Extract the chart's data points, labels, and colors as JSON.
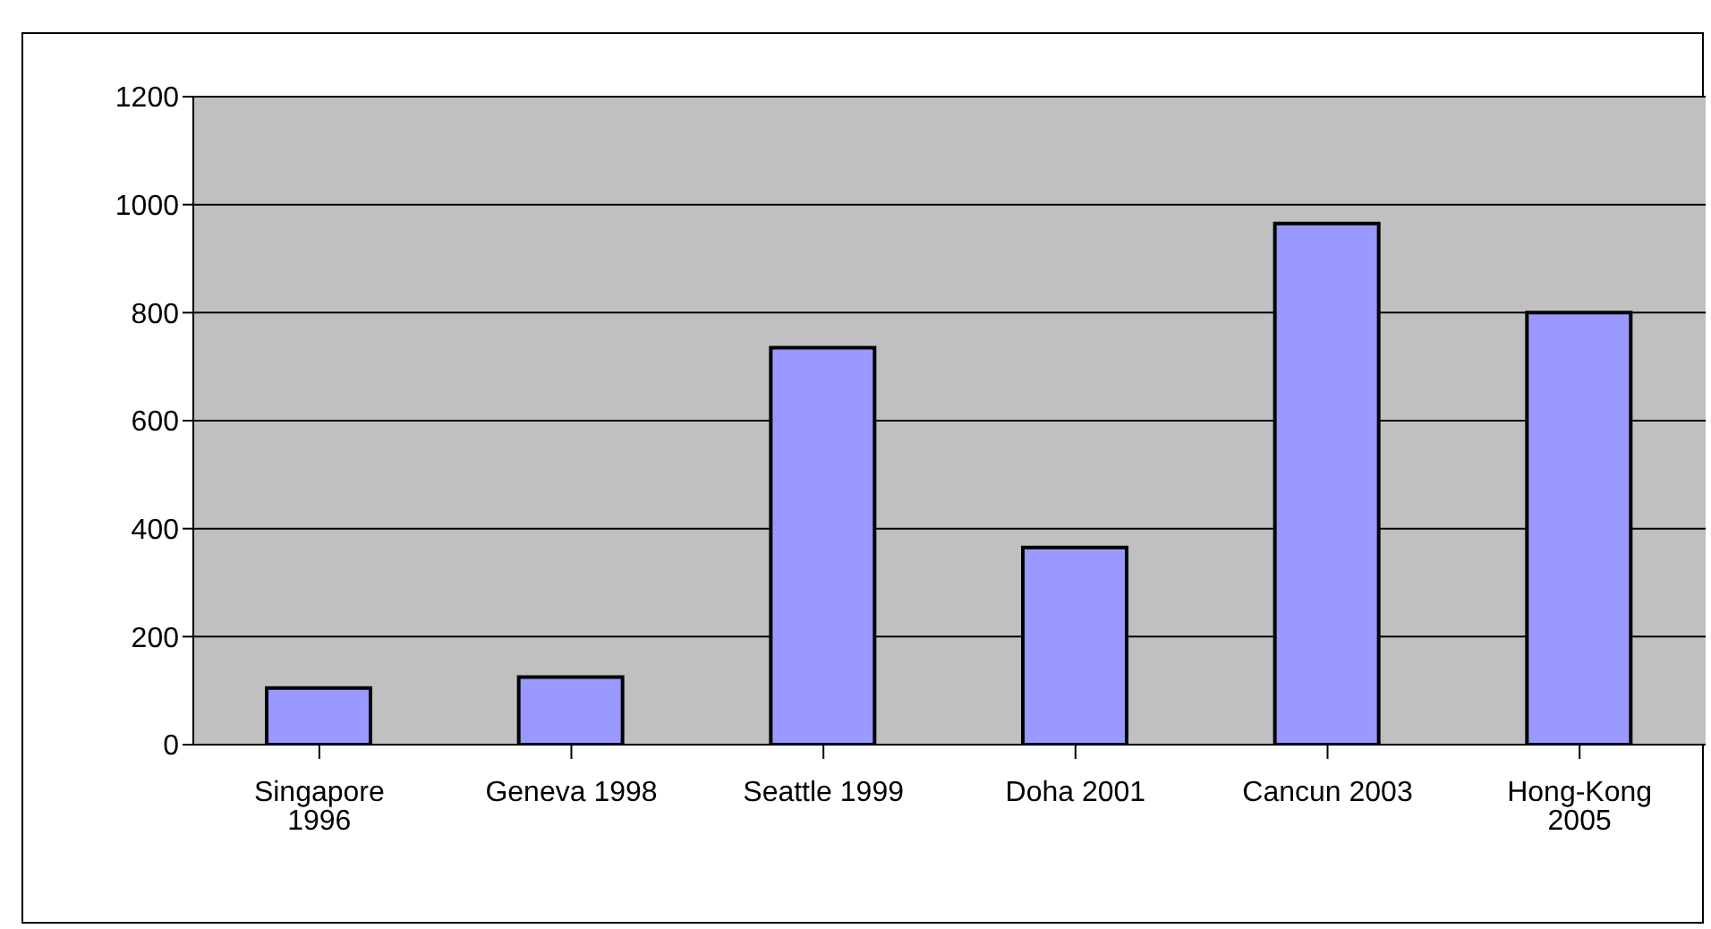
{
  "chart_data": {
    "type": "bar",
    "categories": [
      "Singapore 1996",
      "Geneva 1998",
      "Seattle 1999",
      "Doha 2001",
      "Cancun 2003",
      "Hong-Kong 2005"
    ],
    "values": [
      105,
      125,
      735,
      365,
      965,
      800
    ],
    "color": "#9999ff",
    "ylim": [
      0,
      1200
    ],
    "yticks": [
      0,
      200,
      400,
      600,
      800,
      1000,
      1200
    ],
    "grid": "y"
  }
}
